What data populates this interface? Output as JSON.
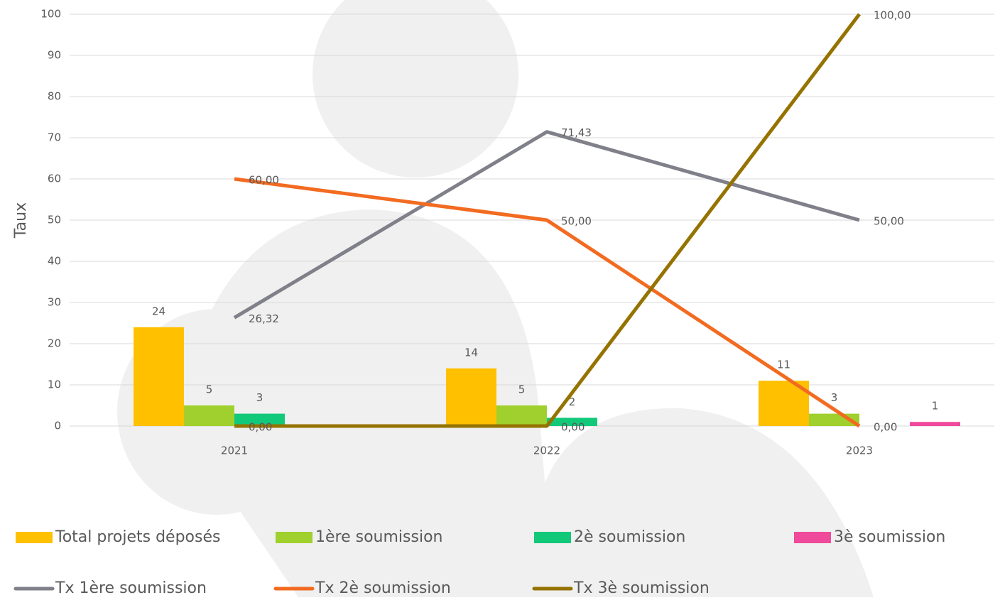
{
  "chart_data": {
    "type": "combo",
    "y_label": "Taux",
    "categories": [
      "2021",
      "2022",
      "2023"
    ],
    "ylim": [
      0,
      100
    ],
    "yticks": [
      0,
      10,
      20,
      30,
      40,
      50,
      60,
      70,
      80,
      90,
      100
    ],
    "grid": true,
    "series": [
      {
        "name": "Total projets déposés",
        "type": "bar",
        "color": "#ffc000",
        "values": [
          24,
          14,
          11
        ]
      },
      {
        "name": "1ère soumission",
        "type": "bar",
        "color": "#9fd02e",
        "values": [
          5,
          5,
          3
        ]
      },
      {
        "name": "2è soumission",
        "type": "bar",
        "color": "#12c97a",
        "values": [
          3,
          2,
          null
        ]
      },
      {
        "name": "3è soumission",
        "type": "bar",
        "color": "#ef4a9b",
        "values": [
          null,
          null,
          1
        ]
      },
      {
        "name": "Tx  1ère soumission",
        "type": "line",
        "color": "#80808a",
        "values": [
          26.32,
          71.43,
          50
        ],
        "value_labels": [
          "26,32",
          "71,43",
          "50,00"
        ]
      },
      {
        "name": "Tx 2è soumission",
        "type": "line",
        "color": "#f26b21",
        "values": [
          60,
          50,
          0
        ],
        "value_labels": [
          "60,00",
          "50,00",
          "0,00"
        ]
      },
      {
        "name": "Tx 3è soumission",
        "type": "line",
        "color": "#957300",
        "values": [
          0,
          0,
          100
        ],
        "value_labels": [
          "0,00",
          "0,00",
          "100,00"
        ]
      }
    ]
  }
}
